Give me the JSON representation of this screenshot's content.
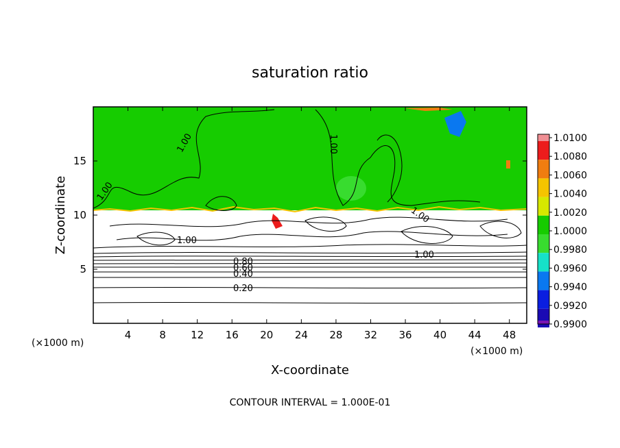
{
  "chart_data": {
    "type": "heatmap",
    "title": "saturation ratio",
    "xlabel": "X-coordinate",
    "ylabel": "Z-coordinate",
    "x_unit": "(×1000 m)",
    "xlim": [
      0,
      50
    ],
    "ylim": [
      0,
      20
    ],
    "x_ticks": [
      4,
      8,
      12,
      16,
      20,
      24,
      28,
      32,
      36,
      40,
      44,
      48
    ],
    "y_ticks": [
      5,
      10,
      15
    ],
    "footer": "CONTOUR INTERVAL = 1.000E-01",
    "colorbar": {
      "labels": [
        "1.0100",
        "1.0080",
        "1.0060",
        "1.0040",
        "1.0020",
        "1.0000",
        "0.9980",
        "0.9960",
        "0.9940",
        "0.9920",
        "0.9900"
      ],
      "colors": [
        "#f08f94",
        "#ec1c1c",
        "#f07d10",
        "#f5c400",
        "#d7e800",
        "#16cc00",
        "#38dc2f",
        "#16e1c8",
        "#0a78f0",
        "#0a1ee0",
        "#1a0ab4",
        "#7a14b4"
      ]
    },
    "contour_labels": [
      "1.00",
      "1.00",
      "1.00",
      "1.00",
      "1.00",
      "1.00",
      "0.80",
      "0.60",
      "0.40",
      "0.20"
    ],
    "grid": false
  }
}
